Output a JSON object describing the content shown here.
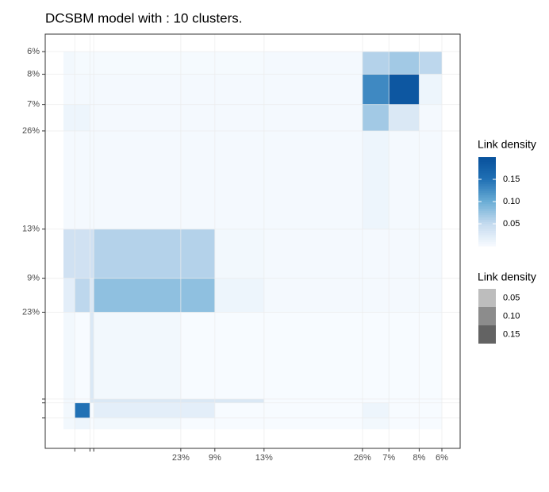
{
  "chart_data": {
    "type": "heatmap",
    "title": "DCSBM model with : 10 clusters.",
    "categories": [
      null,
      null,
      null,
      "23%",
      "9%",
      "13%",
      "26%",
      "7%",
      "8%",
      "6%"
    ],
    "sizes": [
      3,
      4,
      1,
      23,
      9,
      13,
      26,
      7,
      8,
      6
    ],
    "values": [
      [
        0.005,
        0.01,
        0,
        0.005,
        0,
        0,
        0,
        0.005,
        0,
        0
      ],
      [
        0.005,
        0.15,
        0,
        0.02,
        0.02,
        0,
        0,
        0.01,
        0,
        0
      ],
      [
        0.005,
        0,
        0.03,
        0.03,
        0.03,
        0.03,
        0,
        0,
        0,
        0
      ],
      [
        0.005,
        0,
        0.03,
        0.005,
        0,
        0,
        0,
        0,
        0,
        0
      ],
      [
        0.02,
        0.055,
        0.03,
        0.08,
        0.08,
        0.01,
        0.003,
        0.003,
        0.003,
        0.003
      ],
      [
        0.04,
        0.04,
        0.04,
        0.06,
        0.06,
        0.005,
        0.003,
        0.003,
        0.003,
        0.003
      ],
      [
        0.003,
        0.003,
        0.003,
        0.003,
        0.003,
        0.003,
        0.003,
        0.01,
        0.003,
        0.003
      ],
      [
        0.01,
        0.01,
        0.003,
        0.003,
        0.003,
        0.003,
        0.003,
        0.07,
        0.03,
        0.003
      ],
      [
        0.003,
        0.003,
        0.003,
        0.003,
        0.003,
        0.003,
        0.003,
        0.13,
        0.19,
        0.01
      ],
      [
        0.005,
        0.002,
        0.002,
        0.002,
        0.002,
        0.002,
        0.003,
        0.06,
        0.07,
        0.055
      ]
    ],
    "colorscale": [
      "#f7fbff",
      "#c6dbef",
      "#6baed6",
      "#2171b5",
      "#08519c"
    ],
    "clim": [
      0,
      0.2
    ],
    "grid": true,
    "legend": {
      "title": "Link density",
      "ticks": [
        0.05,
        {
          "value": 0.1,
          "label": "0.10"
        },
        0.15
      ]
    },
    "legend2": {
      "title": "Link density",
      "items": [
        0.05,
        {
          "value": 0.1,
          "label": "0.10"
        },
        0.15
      ],
      "colors": [
        "#bdbdbd",
        "#8c8c8c",
        "#636363"
      ]
    }
  }
}
